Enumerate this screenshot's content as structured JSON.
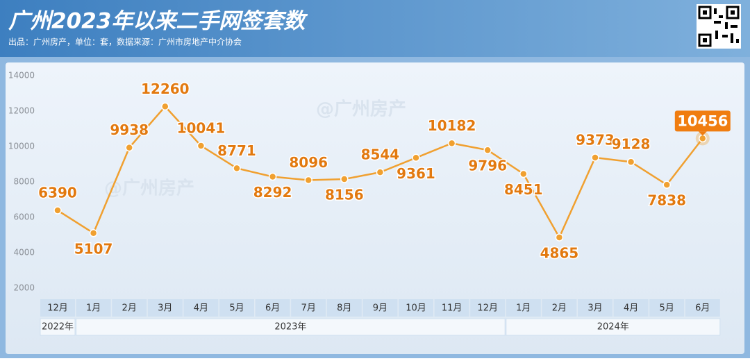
{
  "chart_data": {
    "type": "line",
    "title": "广州2023年以来二手网签套数",
    "subtitle": "出品：广州房产，单位：套，数据来源：广州市房地产中介协会",
    "watermark": "@广州房产",
    "categories": [
      "12月",
      "1月",
      "2月",
      "3月",
      "4月",
      "5月",
      "6月",
      "7月",
      "8月",
      "9月",
      "10月",
      "11月",
      "12月",
      "1月",
      "2月",
      "3月",
      "4月",
      "5月",
      "6月"
    ],
    "years": [
      "2022年",
      "2023年",
      "2024年"
    ],
    "values": [
      6390,
      5107,
      9938,
      12260,
      10041,
      8771,
      8292,
      8096,
      8156,
      8544,
      9361,
      10182,
      9796,
      8451,
      4865,
      9373,
      9128,
      7838,
      10456
    ],
    "color": "#f0a030",
    "label_color": "#e2790f",
    "ylim": [
      2000,
      14000
    ],
    "yticks": [
      2000,
      4000,
      6000,
      8000,
      10000,
      12000,
      14000
    ],
    "grid": false
  }
}
